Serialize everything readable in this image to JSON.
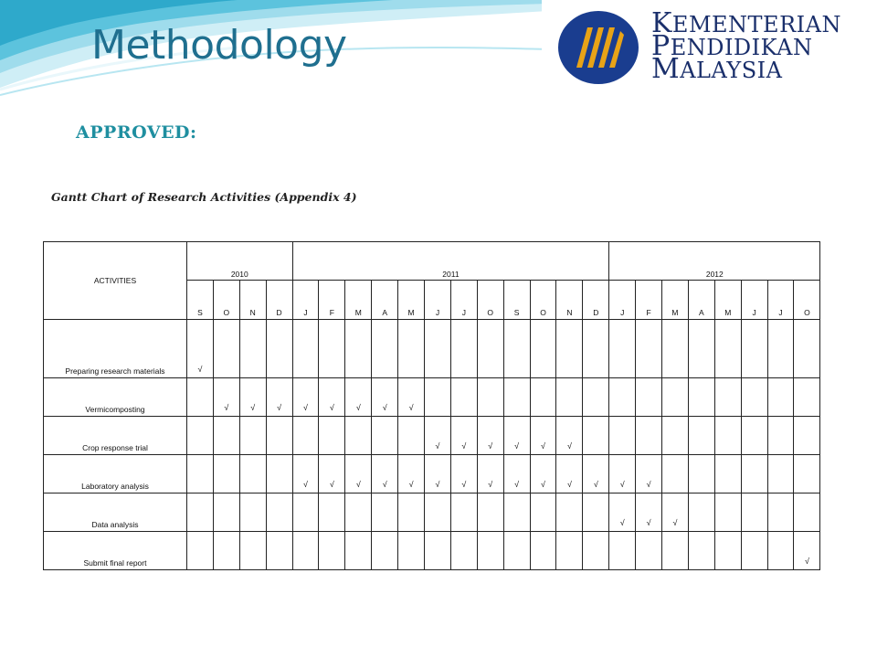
{
  "header": {
    "title": "Methodology",
    "logo": {
      "line1": "KEMENTERIAN",
      "line2": "PENDIDIKAN",
      "line3": "MALAYSIA",
      "colors": {
        "blue": "#1a3d8f",
        "gold": "#e8a317"
      }
    }
  },
  "approved_label": "APPROVED:",
  "caption": "Gantt Chart of Research Activities (Appendix 4)",
  "gantt": {
    "activities_header": "ACTIVITIES",
    "years": [
      {
        "label": "2010",
        "span": 4
      },
      {
        "label": "2011",
        "span": 12
      },
      {
        "label": "2012",
        "span": 8
      }
    ],
    "months": [
      "S",
      "O",
      "N",
      "D",
      "J",
      "F",
      "M",
      "A",
      "M",
      "J",
      "J",
      "O",
      "S",
      "O",
      "N",
      "D",
      "J",
      "F",
      "M",
      "A",
      "M",
      "J",
      "J",
      "O"
    ],
    "check_mark": "√",
    "rows": [
      {
        "activity": "Preparing research materials",
        "marks": [
          0
        ]
      },
      {
        "activity": "Vermicomposting",
        "marks": [
          1,
          2,
          3,
          4,
          5,
          6,
          7,
          8
        ]
      },
      {
        "activity": "Crop response trial",
        "marks": [
          9,
          10,
          11,
          12,
          13,
          14
        ]
      },
      {
        "activity": " Laboratory analysis",
        "marks": [
          4,
          5,
          6,
          7,
          8,
          9,
          10,
          11,
          12,
          13,
          14,
          15,
          16,
          17
        ]
      },
      {
        "activity": "Data analysis",
        "marks": [
          16,
          17,
          18
        ]
      },
      {
        "activity": "Submit final report",
        "marks": [
          23
        ]
      }
    ]
  }
}
